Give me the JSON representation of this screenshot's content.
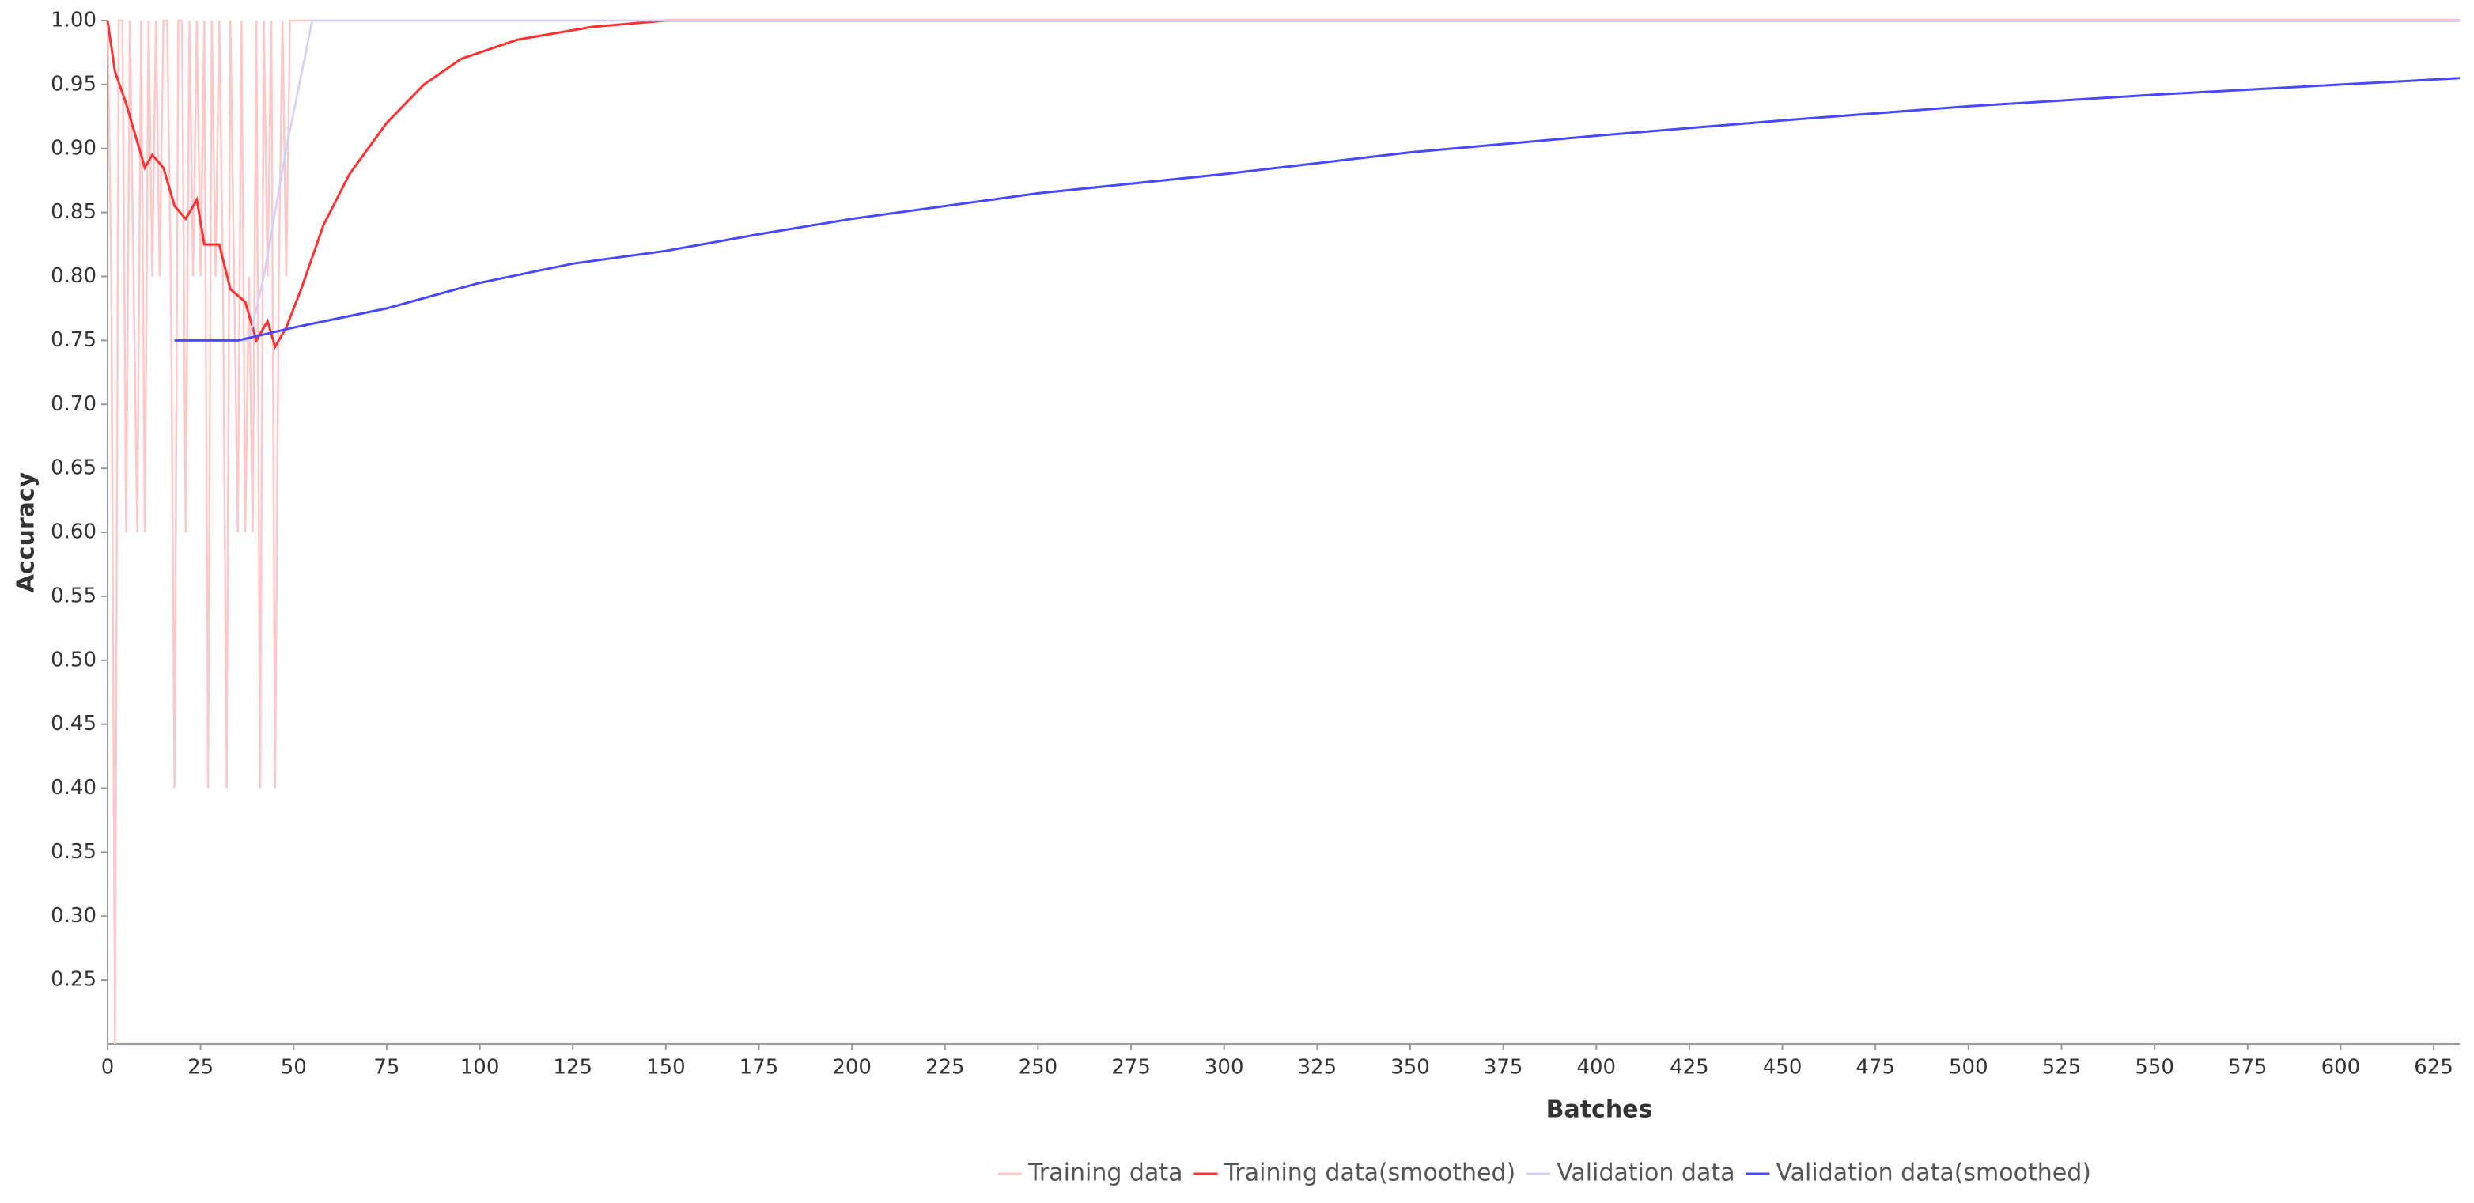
{
  "chart_data": {
    "type": "line",
    "x_label": "Batches",
    "y_label": "Accuracy",
    "xlim": [
      0,
      632
    ],
    "ylim": [
      0.2,
      1.0
    ],
    "xticks": [
      0,
      25,
      50,
      75,
      100,
      125,
      150,
      175,
      200,
      225,
      250,
      275,
      300,
      325,
      350,
      375,
      400,
      425,
      450,
      475,
      500,
      525,
      550,
      575,
      600,
      625
    ],
    "yticks": [
      {
        "value": 0.25,
        "label": "0.25"
      },
      {
        "value": 0.3,
        "label": "0.30"
      },
      {
        "value": 0.35,
        "label": "0.35"
      },
      {
        "value": 0.4,
        "label": "0.40"
      },
      {
        "value": 0.45,
        "label": "0.45"
      },
      {
        "value": 0.5,
        "label": "0.50"
      },
      {
        "value": 0.55,
        "label": "0.55"
      },
      {
        "value": 0.6,
        "label": "0.60"
      },
      {
        "value": 0.65,
        "label": "0.65"
      },
      {
        "value": 0.7,
        "label": "0.70"
      },
      {
        "value": 0.75,
        "label": "0.75"
      },
      {
        "value": 0.8,
        "label": "0.80"
      },
      {
        "value": 0.85,
        "label": "0.85"
      },
      {
        "value": 0.9,
        "label": "0.90"
      },
      {
        "value": 0.95,
        "label": "0.95"
      },
      {
        "value": 1.0,
        "label": "1.00"
      }
    ],
    "grid": false,
    "legend": "bottom",
    "series": [
      {
        "name": "Training data",
        "color": "#ffc8c8",
        "x": [
          0,
          1,
          2,
          3,
          4,
          5,
          6,
          7,
          8,
          9,
          10,
          11,
          12,
          13,
          14,
          15,
          16,
          17,
          18,
          19,
          20,
          21,
          22,
          23,
          24,
          25,
          26,
          27,
          28,
          29,
          30,
          31,
          32,
          33,
          34,
          35,
          36,
          37,
          38,
          39,
          40,
          41,
          42,
          43,
          44,
          45,
          46,
          47,
          48,
          49,
          50,
          51,
          632
        ],
        "values": [
          1,
          0.8,
          0.2,
          1,
          1,
          0.6,
          1,
          0.8,
          0.6,
          1,
          0.6,
          1,
          0.8,
          1,
          0.8,
          1,
          1,
          0.8,
          0.4,
          1,
          1,
          0.6,
          1,
          0.8,
          1,
          0.8,
          1,
          0.4,
          1,
          0.8,
          1,
          0.8,
          0.4,
          1,
          0.8,
          0.6,
          1,
          0.6,
          0.8,
          0.6,
          1,
          0.4,
          1,
          0.8,
          1,
          0.4,
          0.8,
          1,
          0.8,
          1,
          1,
          1,
          1
        ]
      },
      {
        "name": "Training data(smoothed)",
        "color": "#ff3030",
        "x": [
          0,
          2,
          5,
          10,
          12,
          15,
          18,
          21,
          24,
          26,
          30,
          33,
          37,
          40,
          43,
          45,
          48,
          52,
          58,
          65,
          75,
          85,
          95,
          110,
          130,
          150,
          632
        ],
        "values": [
          1.0,
          0.96,
          0.935,
          0.885,
          0.895,
          0.885,
          0.855,
          0.845,
          0.86,
          0.825,
          0.825,
          0.79,
          0.78,
          0.75,
          0.765,
          0.745,
          0.76,
          0.79,
          0.84,
          0.88,
          0.92,
          0.95,
          0.97,
          0.985,
          0.995,
          1.0,
          1.0
        ]
      },
      {
        "name": "Validation data",
        "color": "#d0d0ff",
        "x": [
          18,
          38,
          42,
          48,
          55,
          632
        ],
        "values": [
          0.75,
          0.75,
          0.8,
          0.9,
          1.0,
          1.0
        ]
      },
      {
        "name": "Validation data(smoothed)",
        "color": "#4848ff",
        "x": [
          18,
          35,
          50,
          75,
          100,
          125,
          150,
          175,
          200,
          250,
          300,
          350,
          400,
          450,
          500,
          550,
          600,
          632
        ],
        "values": [
          0.75,
          0.75,
          0.76,
          0.775,
          0.795,
          0.81,
          0.82,
          0.833,
          0.845,
          0.865,
          0.88,
          0.897,
          0.91,
          0.922,
          0.933,
          0.942,
          0.95,
          0.955
        ]
      }
    ]
  }
}
